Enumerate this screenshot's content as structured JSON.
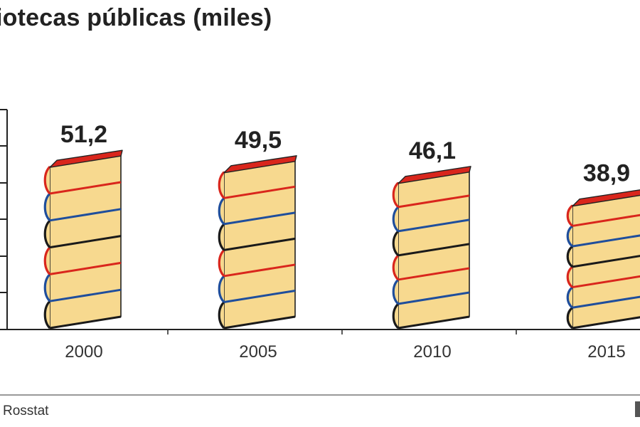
{
  "title": "iotecas públicas (miles)",
  "source": "Rosstat",
  "chart_data": {
    "type": "bar",
    "title": "iotecas públicas (miles)",
    "categories": [
      "2000",
      "2005",
      "2010",
      "2015"
    ],
    "values": [
      51.2,
      49.5,
      46.1,
      38.9
    ],
    "value_labels": [
      "51,2",
      "49,5",
      "46,1",
      "38,9"
    ],
    "xlabel": "",
    "ylabel": "",
    "ylim": [
      0,
      60
    ],
    "grid": false,
    "bar_style": "stacked-books-pictogram",
    "colors": {
      "page": "#f7d98f",
      "red_cover": "#d9261c",
      "blue_cover": "#1f4e9c",
      "black_cover": "#1a1a1a",
      "outline": "#222222",
      "axis": "#222222"
    }
  }
}
